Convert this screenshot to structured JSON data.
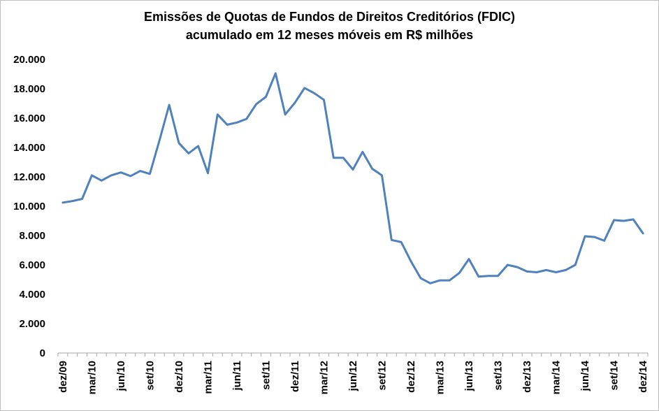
{
  "chart_data": {
    "type": "line",
    "title": "Emissões de Quotas de Fundos de Direitos Creditórios (FDIC)",
    "subtitle": "acumulado em 12 meses móveis em R$ milhões",
    "xlabel": "",
    "ylabel": "",
    "ylim": [
      0,
      20000
    ],
    "yticks": [
      "0",
      "2.000",
      "4.000",
      "6.000",
      "8.000",
      "10.000",
      "12.000",
      "14.000",
      "16.000",
      "18.000",
      "20.000"
    ],
    "x": [
      "dez/09",
      "jan/10",
      "fev/10",
      "mar/10",
      "abr/10",
      "mai/10",
      "jun/10",
      "jul/10",
      "ago/10",
      "set/10",
      "out/10",
      "nov/10",
      "dez/10",
      "jan/11",
      "fev/11",
      "mar/11",
      "abr/11",
      "mai/11",
      "jun/11",
      "jul/11",
      "ago/11",
      "set/11",
      "out/11",
      "nov/11",
      "dez/11",
      "jan/12",
      "fev/12",
      "mar/12",
      "abr/12",
      "mai/12",
      "jun/12",
      "jul/12",
      "ago/12",
      "set/12",
      "out/12",
      "nov/12",
      "dez/12",
      "jan/13",
      "fev/13",
      "mar/13",
      "abr/13",
      "mai/13",
      "jun/13",
      "jul/13",
      "ago/13",
      "set/13",
      "out/13",
      "nov/13",
      "dez/13",
      "jan/14",
      "fev/14",
      "mar/14",
      "abr/14",
      "mai/14",
      "jun/14",
      "jul/14",
      "ago/14",
      "set/14",
      "out/14",
      "nov/14",
      "dez/14"
    ],
    "xtick_labels": [
      "dez/09",
      "mar/10",
      "jun/10",
      "set/10",
      "dez/10",
      "mar/11",
      "jun/11",
      "set/11",
      "dez/11",
      "mar/12",
      "jun/12",
      "set/12",
      "dez/12",
      "mar/13",
      "jun/13",
      "set/13",
      "dez/13",
      "mar/14",
      "jun/14",
      "set/14",
      "dez/14"
    ],
    "series": [
      {
        "values": [
          10250,
          10350,
          10500,
          12100,
          11750,
          12100,
          12300,
          12050,
          12400,
          12200,
          14500,
          16900,
          14300,
          13600,
          14100,
          12250,
          16250,
          15550,
          15700,
          15950,
          16950,
          17450,
          19050,
          16250,
          17050,
          18050,
          17700,
          17250,
          13300,
          13300,
          12500,
          13700,
          12550,
          12100,
          7700,
          7550,
          6250,
          5100,
          4750,
          4950,
          4950,
          5450,
          6400,
          5200,
          5250,
          5250,
          6000,
          5850,
          5550,
          5500,
          5650,
          5500,
          5650,
          6000,
          7950,
          7900,
          7650,
          9050,
          9000,
          9100,
          8150
        ],
        "color": "#4f81bd"
      }
    ],
    "grid": false,
    "legend": "none"
  }
}
